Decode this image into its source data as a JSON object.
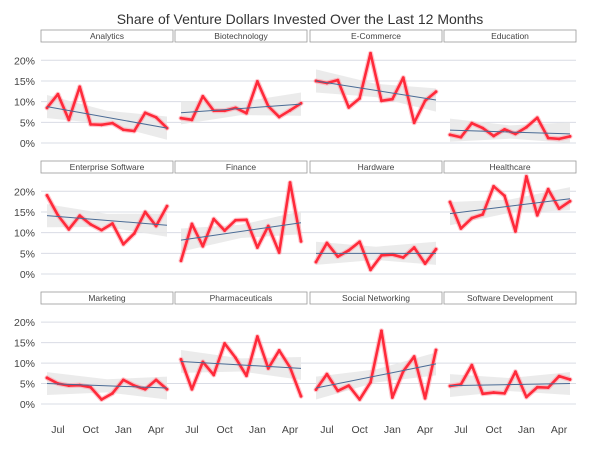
{
  "chart_data": {
    "type": "line",
    "title": "Share of Venture Dollars Invested Over the Last 12 Months",
    "y_ticks": [
      "0%",
      "5%",
      "10%",
      "15%",
      "20%"
    ],
    "ylim": [
      0,
      22
    ],
    "x_ticks": [
      {
        "label": "Jul",
        "index": 1
      },
      {
        "label": "Oct",
        "index": 4
      },
      {
        "label": "Jan",
        "index": 7
      },
      {
        "label": "Apr",
        "index": 10
      }
    ],
    "colors": {
      "line": "#ff2a3a",
      "line_glow": "#ff9aa5",
      "trend": "#4a6b95",
      "band": "#e7e7e7",
      "grid": "#d9dce4",
      "header_border": "#9a9a9a",
      "text": "#444444"
    },
    "panels": [
      {
        "name": "Analytics",
        "values": [
          8.5,
          11.8,
          5.6,
          13.6,
          4.5,
          4.4,
          4.8,
          3.2,
          2.9,
          7.3,
          6.2,
          3.6
        ],
        "trend": [
          8.8,
          3.6
        ]
      },
      {
        "name": "Biotechnology",
        "values": [
          6.0,
          5.6,
          11.3,
          7.8,
          7.8,
          8.5,
          7.2,
          14.9,
          8.9,
          6.3,
          7.9,
          9.6
        ],
        "trend": [
          7.3,
          9.4
        ]
      },
      {
        "name": "E-Commerce",
        "values": [
          15.0,
          14.5,
          15.2,
          8.6,
          10.8,
          21.7,
          10.2,
          10.6,
          15.8,
          4.9,
          10.2,
          12.4
        ],
        "trend": [
          15.0,
          10.4
        ]
      },
      {
        "name": "Education",
        "values": [
          2.0,
          1.4,
          4.8,
          3.6,
          1.7,
          3.3,
          2.2,
          3.8,
          6.1,
          1.2,
          1.0,
          1.6
        ],
        "trend": [
          3.1,
          2.2
        ]
      },
      {
        "name": "Enterprise Software",
        "values": [
          19.0,
          14.2,
          10.8,
          14.1,
          12.0,
          10.6,
          12.2,
          7.2,
          9.8,
          15.0,
          11.6,
          16.4
        ],
        "trend": [
          14.1,
          11.8
        ]
      },
      {
        "name": "Finance",
        "values": [
          3.2,
          12.1,
          6.7,
          13.3,
          10.5,
          13.0,
          13.1,
          6.4,
          11.6,
          5.2,
          22.1,
          7.9
        ],
        "trend": [
          8.2,
          12.4
        ]
      },
      {
        "name": "Hardware",
        "values": [
          2.9,
          7.5,
          4.2,
          5.7,
          7.8,
          1.0,
          4.5,
          4.7,
          4.0,
          6.4,
          2.5,
          6.0
        ],
        "trend": [
          5.0,
          5.0
        ]
      },
      {
        "name": "Healthcare",
        "values": [
          17.4,
          11.0,
          13.5,
          14.4,
          21.2,
          18.9,
          10.3,
          23.6,
          14.2,
          20.5,
          15.8,
          17.6
        ],
        "trend": [
          14.6,
          18.2
        ]
      },
      {
        "name": "Marketing",
        "values": [
          6.4,
          5.0,
          4.5,
          4.6,
          4.1,
          1.1,
          2.6,
          5.9,
          4.5,
          3.6,
          5.9,
          3.6
        ],
        "trend": [
          5.0,
          3.9
        ]
      },
      {
        "name": "Pharmaceuticals",
        "values": [
          10.9,
          3.6,
          10.3,
          7.1,
          14.8,
          11.3,
          6.9,
          16.5,
          8.7,
          13.1,
          8.9,
          1.9
        ],
        "trend": [
          10.4,
          8.7
        ]
      },
      {
        "name": "Social Networking",
        "values": [
          3.5,
          7.3,
          3.2,
          4.5,
          1.1,
          5.3,
          17.9,
          1.6,
          8.0,
          11.6,
          1.4,
          13.2
        ],
        "trend": [
          3.9,
          9.8
        ]
      },
      {
        "name": "Software Development",
        "values": [
          4.4,
          4.8,
          9.5,
          2.5,
          2.8,
          2.6,
          7.9,
          1.7,
          4.1,
          4.0,
          6.8,
          6.0
        ],
        "trend": [
          4.5,
          5.0
        ]
      }
    ]
  }
}
